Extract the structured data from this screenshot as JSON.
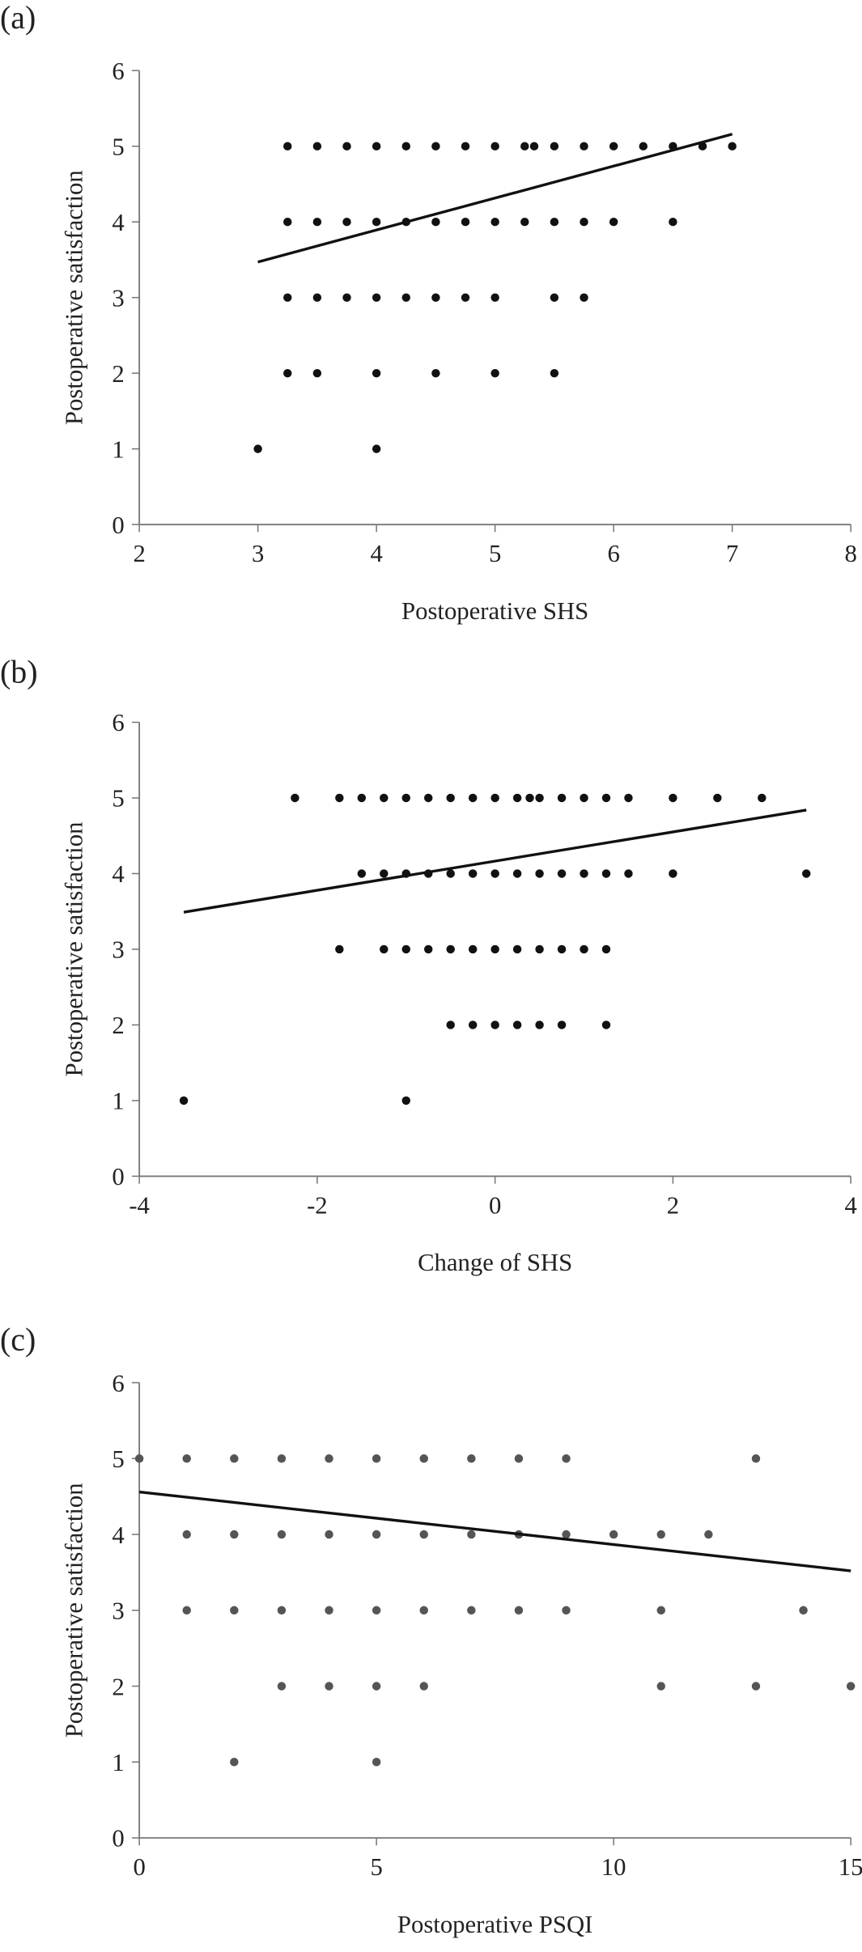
{
  "chart_data": [
    {
      "type": "scatter",
      "panel_label": "(a)",
      "x_label": "Postoperative SHS",
      "y_label": "Postoperative satisfaction",
      "xlim": [
        2,
        8
      ],
      "ylim": [
        0,
        6
      ],
      "xticks": [
        2,
        3,
        4,
        5,
        6,
        7,
        8
      ],
      "yticks": [
        0,
        1,
        2,
        3,
        4,
        5,
        6
      ],
      "color": "#111111",
      "x": [
        3.25,
        3.5,
        3.75,
        4,
        4.25,
        4.5,
        4.75,
        5,
        5.25,
        5.33,
        5.5,
        5.75,
        6,
        6.25,
        6.5,
        6.75,
        7,
        3.25,
        3.5,
        3.75,
        4,
        4.25,
        4.5,
        4.75,
        5,
        5.25,
        5.5,
        5.75,
        6,
        6.5,
        3.25,
        3.5,
        3.75,
        4,
        4.25,
        4.5,
        4.75,
        5,
        5.5,
        5.75,
        3.25,
        3.5,
        4,
        4.5,
        5,
        5.5,
        3,
        4
      ],
      "values": [
        5,
        5,
        5,
        5,
        5,
        5,
        5,
        5,
        5,
        5,
        5,
        5,
        5,
        5,
        5,
        5,
        5,
        4,
        4,
        4,
        4,
        4,
        4,
        4,
        4,
        4,
        4,
        4,
        4,
        4,
        3,
        3,
        3,
        3,
        3,
        3,
        3,
        3,
        3,
        3,
        2,
        2,
        2,
        2,
        2,
        2,
        1,
        1
      ],
      "trendline": {
        "x": [
          3,
          7
        ],
        "values": [
          3.47,
          5.16
        ],
        "color": "#111111"
      }
    },
    {
      "type": "scatter",
      "panel_label": "(b)",
      "x_label": "Change of SHS",
      "y_label": "Postoperative satisfaction",
      "xlim": [
        -4,
        4
      ],
      "ylim": [
        0,
        6
      ],
      "xticks": [
        -4,
        -2,
        0,
        2,
        4
      ],
      "yticks": [
        0,
        1,
        2,
        3,
        4,
        5,
        6
      ],
      "color": "#111111",
      "x": [
        -2.25,
        -1.75,
        -1.5,
        -1.25,
        -1,
        -0.75,
        -0.5,
        -0.25,
        0,
        0.25,
        0.39,
        0.5,
        0.75,
        1,
        1.25,
        1.5,
        2,
        2.5,
        3,
        -1.5,
        -1.25,
        -1,
        -0.75,
        -0.5,
        -0.25,
        0,
        0.25,
        0.5,
        0.75,
        1,
        1.25,
        1.5,
        2,
        3.5,
        -1.75,
        -1.25,
        -1,
        -0.75,
        -0.5,
        -0.25,
        0,
        0.25,
        0.5,
        0.75,
        1,
        1.25,
        -0.5,
        -0.25,
        0,
        0.25,
        0.5,
        0.75,
        1.25,
        -3.5,
        -1
      ],
      "values": [
        5,
        5,
        5,
        5,
        5,
        5,
        5,
        5,
        5,
        5,
        5,
        5,
        5,
        5,
        5,
        5,
        5,
        5,
        5,
        4,
        4,
        4,
        4,
        4,
        4,
        4,
        4,
        4,
        4,
        4,
        4,
        4,
        4,
        4,
        3,
        3,
        3,
        3,
        3,
        3,
        3,
        3,
        3,
        3,
        3,
        3,
        2,
        2,
        2,
        2,
        2,
        2,
        2,
        1,
        1
      ],
      "trendline": {
        "x": [
          -3.5,
          3.5
        ],
        "values": [
          3.49,
          4.84
        ],
        "color": "#111111"
      }
    },
    {
      "type": "scatter",
      "panel_label": "(c)",
      "x_label": "Postoperative PSQI",
      "y_label": "Postoperative satisfaction",
      "xlim": [
        0,
        15
      ],
      "ylim": [
        0,
        6
      ],
      "xticks": [
        0,
        5,
        10,
        15
      ],
      "yticks": [
        0,
        1,
        2,
        3,
        4,
        5,
        6
      ],
      "color": "#555555",
      "x": [
        0,
        1,
        2,
        3,
        4,
        5,
        6,
        7,
        8,
        9,
        13,
        1,
        2,
        3,
        4,
        5,
        6,
        7,
        8,
        9,
        10,
        11,
        12,
        1,
        2,
        3,
        4,
        5,
        6,
        7,
        8,
        9,
        11,
        14,
        3,
        4,
        5,
        6,
        11,
        13,
        15,
        2,
        5
      ],
      "values": [
        5,
        5,
        5,
        5,
        5,
        5,
        5,
        5,
        5,
        5,
        5,
        4,
        4,
        4,
        4,
        4,
        4,
        4,
        4,
        4,
        4,
        4,
        4,
        3,
        3,
        3,
        3,
        3,
        3,
        3,
        3,
        3,
        3,
        3,
        2,
        2,
        2,
        2,
        2,
        2,
        2,
        1,
        1
      ],
      "trendline": {
        "x": [
          0,
          15
        ],
        "values": [
          4.56,
          3.52
        ],
        "color": "#111111"
      }
    }
  ]
}
